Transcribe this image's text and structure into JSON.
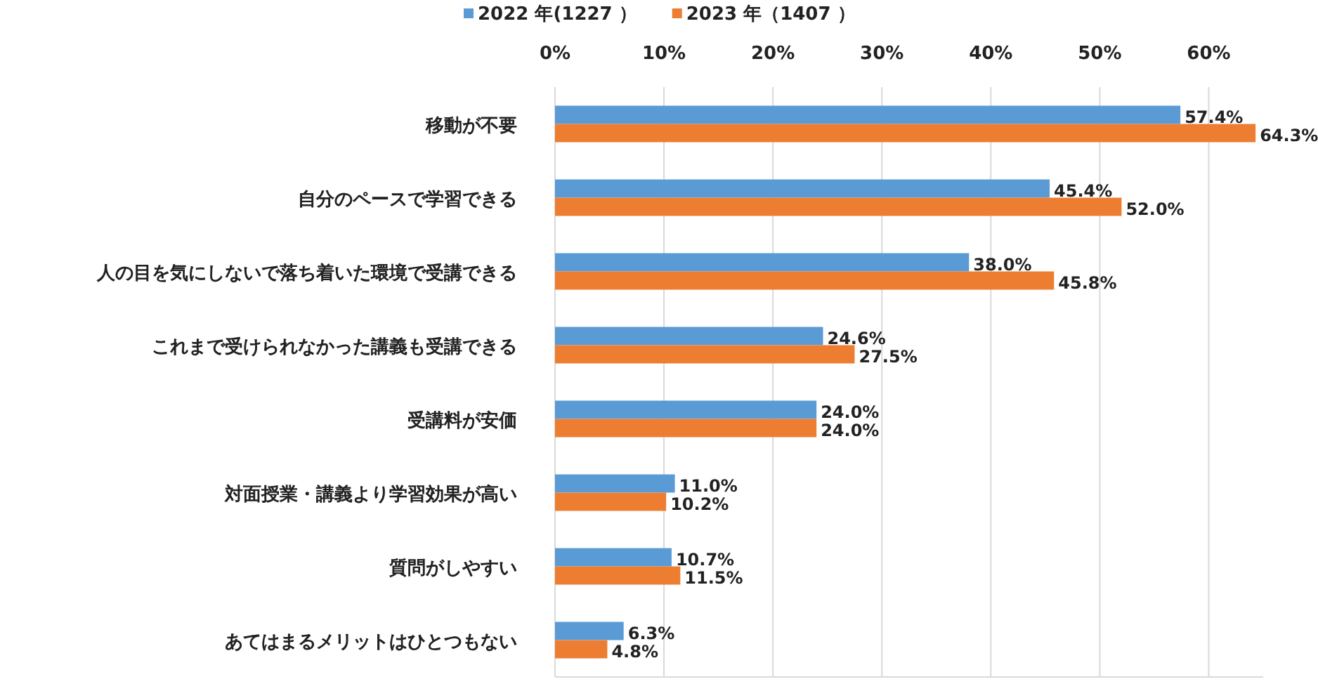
{
  "chart_data": {
    "type": "bar",
    "orientation": "horizontal",
    "categories": [
      "移動が不要",
      "自分のペースで学習できる",
      "人の目を気にしないで落ち着いた環境で受講できる",
      "これまで受けられなかった講義も受講できる",
      "受講料が安価",
      "対面授業・講義より学習効果が高い",
      "質問がしやすい",
      "あてはまるメリットはひとつもない"
    ],
    "series": [
      {
        "name": "2022 年(1227 ）",
        "color": "#5b9bd5",
        "values": [
          57.4,
          45.4,
          38.0,
          24.6,
          24.0,
          11.0,
          10.7,
          6.3
        ],
        "value_labels": [
          "57.4%",
          "45.4%",
          "38.0%",
          "24.6%",
          "24.0%",
          "11.0%",
          "10.7%",
          "6.3%"
        ]
      },
      {
        "name": "2023 年（1407 ）",
        "color": "#ed7d31",
        "values": [
          64.3,
          52.0,
          45.8,
          27.5,
          24.0,
          10.2,
          11.5,
          4.8
        ],
        "value_labels": [
          "64.3%",
          "52.0%",
          "45.8%",
          "27.5%",
          "24.0%",
          "10.2%",
          "11.5%",
          "4.8%"
        ]
      }
    ],
    "xlim": [
      0,
      65
    ],
    "xticks": [
      {
        "value": 0,
        "label": "0%"
      },
      {
        "value": 10,
        "label": "10%"
      },
      {
        "value": 20,
        "label": "20%"
      },
      {
        "value": 30,
        "label": "30%"
      },
      {
        "value": 40,
        "label": "40%"
      },
      {
        "value": 50,
        "label": "50%"
      },
      {
        "value": 60,
        "label": "60%"
      }
    ],
    "grid": "x",
    "legend": "top"
  }
}
